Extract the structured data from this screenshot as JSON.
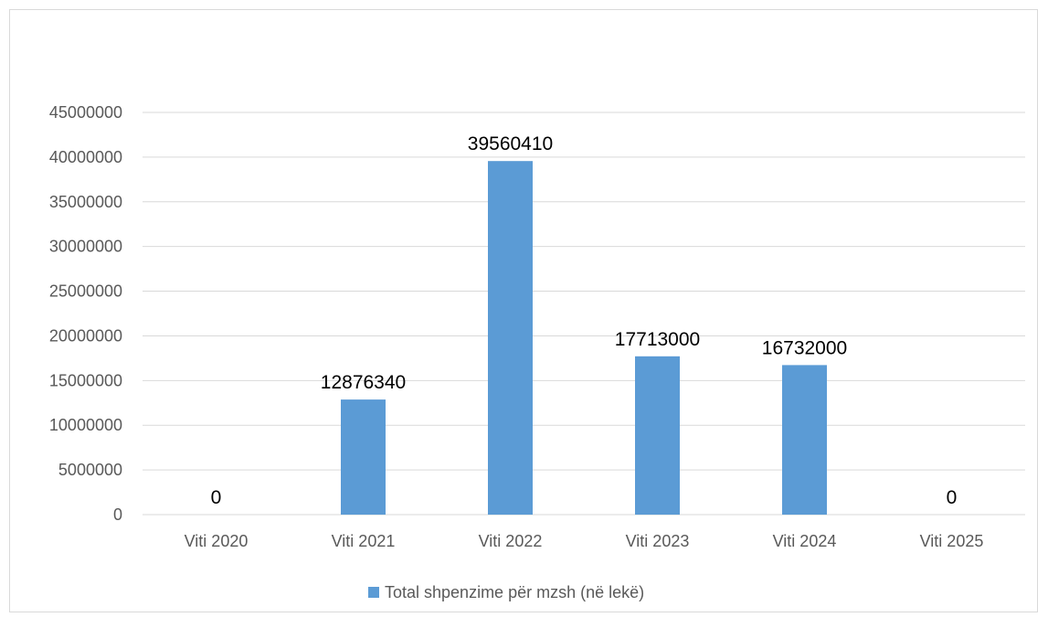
{
  "chart_data": {
    "type": "bar",
    "categories": [
      "Viti 2020",
      "Viti 2021",
      "Viti 2022",
      "Viti 2023",
      "Viti 2024",
      "Viti 2025"
    ],
    "series": [
      {
        "name": "Total shpenzime për mzsh (në lekë)",
        "values": [
          0,
          12876340,
          39560410,
          17713000,
          16732000,
          0
        ],
        "color": "#5b9bd5"
      }
    ],
    "data_labels": [
      "0",
      "12876340",
      "39560410",
      "17713000",
      "16732000",
      "0"
    ],
    "yticks": [
      "0",
      "5000000",
      "10000000",
      "15000000",
      "20000000",
      "25000000",
      "30000000",
      "35000000",
      "40000000",
      "45000000"
    ],
    "ylim": [
      0,
      45000000
    ],
    "ystep": 5000000,
    "grid": true,
    "legend_position": "bottom",
    "title": "",
    "xlabel": "",
    "ylabel": ""
  }
}
